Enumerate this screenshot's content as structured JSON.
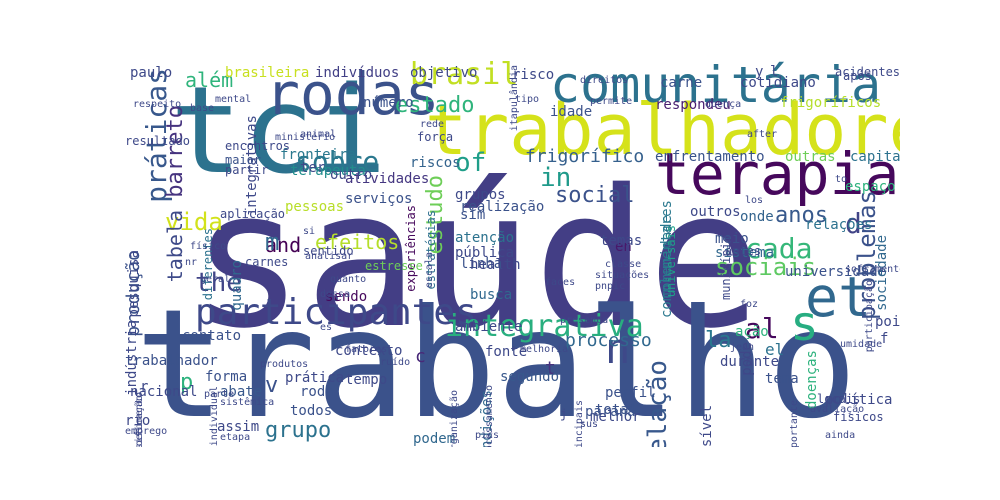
{
  "palette": {
    "dark_purple": "#48186a",
    "indigo": "#433e85",
    "blue": "#38588c",
    "teal_blue": "#2c728e",
    "teal": "#21908d",
    "green_teal": "#27ad81",
    "green": "#5dc963",
    "lime": "#aadc32",
    "yellow": "#e5e419"
  },
  "words": [
    {
      "text": "saúde",
      "color": "#433e85",
      "rotation": "horizontal"
    },
    {
      "text": "trabalho",
      "color": "#3b528b",
      "rotation": "horizontal"
    },
    {
      "text": "tci",
      "color": "#2c728e",
      "rotation": "horizontal"
    },
    {
      "text": "trabalhadores",
      "color": "#d5e21a",
      "rotation": "horizontal"
    },
    {
      "text": "comunitária",
      "color": "#2c728e",
      "rotation": "horizontal"
    },
    {
      "text": "terapia",
      "color": "#46085c",
      "rotation": "horizontal"
    },
    {
      "text": "rodas",
      "color": "#3b528b",
      "rotation": "horizontal"
    },
    {
      "text": "et",
      "color": "#31688e",
      "rotation": "horizontal"
    },
    {
      "text": "participantes",
      "color": "#3e4989",
      "rotation": "horizontal"
    },
    {
      "text": "integrativa",
      "color": "#29af7f",
      "rotation": "horizontal"
    },
    {
      "text": "s",
      "color": "#27ad81",
      "rotation": "horizontal"
    },
    {
      "text": "brasil",
      "color": "#c2df23",
      "rotation": "horizontal"
    },
    {
      "text": "n",
      "color": "#3e4989",
      "rotation": "horizontal"
    },
    {
      "text": "práticas",
      "color": "#38588c",
      "rotation": "vertical"
    },
    {
      "text": "the",
      "color": "#414487",
      "rotation": "horizontal"
    },
    {
      "text": "social",
      "color": "#3b528b",
      "rotation": "horizontal"
    },
    {
      "text": "sociais",
      "color": "#5ec962",
      "rotation": "horizontal"
    },
    {
      "text": "vida",
      "color": "#d2e21b",
      "rotation": "horizontal"
    },
    {
      "text": "sobre",
      "color": "#2a788e",
      "rotation": "horizontal"
    },
    {
      "text": "of",
      "color": "#1f9e89",
      "rotation": "horizontal"
    },
    {
      "text": "in",
      "color": "#1f9a8a",
      "rotation": "horizontal"
    },
    {
      "text": "cada",
      "color": "#35b779",
      "rotation": "horizontal"
    },
    {
      "text": "anos",
      "color": "#38598c",
      "rotation": "horizontal"
    },
    {
      "text": "al",
      "color": "#46085c",
      "rotation": "horizontal"
    },
    {
      "text": "grupo",
      "color": "#2c728e",
      "rotation": "horizontal"
    },
    {
      "text": "relação",
      "color": "#38588c",
      "rotation": "vertical"
    },
    {
      "text": "estado",
      "color": "#2fb47c",
      "rotation": "horizontal"
    },
    {
      "text": "problemas",
      "color": "#3b528b",
      "rotation": "vertical"
    },
    {
      "text": "estudo",
      "color": "#6ece58",
      "rotation": "vertical"
    },
    {
      "text": "barreto",
      "color": "#46337f",
      "rotation": "vertical"
    },
    {
      "text": "tabela",
      "color": "#3e4a89",
      "rotation": "vertical"
    },
    {
      "text": "produção",
      "color": "#3b528b",
      "rotation": "vertical"
    },
    {
      "text": "and",
      "color": "#440154",
      "rotation": "horizontal"
    },
    {
      "text": "efeitos",
      "color": "#b5de2b",
      "rotation": "horizontal"
    },
    {
      "text": "além",
      "color": "#2fb47c",
      "rotation": "horizontal"
    },
    {
      "text": "frigorífico",
      "color": "#35608d",
      "rotation": "horizontal"
    },
    {
      "text": "processo",
      "color": "#31688e",
      "rotation": "horizontal"
    },
    {
      "text": "la",
      "color": "#2a788e",
      "rotation": "horizontal"
    },
    {
      "text": "d",
      "color": "#414487",
      "rotation": "horizontal"
    },
    {
      "text": "m",
      "color": "#31688e",
      "rotation": "horizontal"
    },
    {
      "text": "v",
      "color": "#3b528b",
      "rotation": "horizontal"
    },
    {
      "text": "p",
      "color": "#2db27d",
      "rotation": "horizontal"
    },
    {
      "text": "c",
      "color": "#482878",
      "rotation": "horizontal"
    },
    {
      "text": "t",
      "color": "#46327e",
      "rotation": "horizontal"
    },
    {
      "text": "en",
      "color": "#48186a",
      "rotation": "horizontal"
    },
    {
      "text": "el",
      "color": "#2c728e",
      "rotation": "horizontal"
    },
    {
      "text": "pode",
      "color": "#3f4788",
      "rotation": "vertical"
    },
    {
      "text": "comunidade",
      "color": "#2a778e",
      "rotation": "vertical"
    },
    {
      "text": "complementares",
      "color": "#2a788e",
      "rotation": "vertical"
    },
    {
      "text": "estratégias",
      "color": "#2e6f8e",
      "rotation": "vertical"
    },
    {
      "text": "experiências",
      "color": "#46085c",
      "rotation": "vertical"
    },
    {
      "text": "fronteira",
      "color": "#2a788e",
      "rotation": "horizontal"
    },
    {
      "text": "terapeuta",
      "color": "#228d8d",
      "rotation": "horizontal"
    },
    {
      "text": "pessoas",
      "color": "#b8de29",
      "rotation": "horizontal"
    },
    {
      "text": "atividades",
      "color": "#453781",
      "rotation": "horizontal"
    },
    {
      "text": "outro",
      "color": "#3e4989",
      "rotation": "horizontal"
    },
    {
      "text": "riscos",
      "color": "#33638d",
      "rotation": "horizontal"
    },
    {
      "text": "serviços",
      "color": "#3b528b",
      "rotation": "horizontal"
    },
    {
      "text": "respondeu",
      "color": "#481f70",
      "rotation": "horizontal"
    },
    {
      "text": "enfrentamento",
      "color": "#3a538b",
      "rotation": "horizontal"
    },
    {
      "text": "idade",
      "color": "#3b528b",
      "rotation": "horizontal"
    },
    {
      "text": "objetivo",
      "color": "#3e4989",
      "rotation": "horizontal"
    },
    {
      "text": "indivíduos",
      "color": "#424086",
      "rotation": "horizontal"
    },
    {
      "text": "brasileira",
      "color": "#c8e020",
      "rotation": "horizontal"
    },
    {
      "text": "paulo",
      "color": "#3e4989",
      "rotation": "horizontal"
    },
    {
      "text": "carne",
      "color": "#3b528b",
      "rotation": "horizontal"
    },
    {
      "text": "risco",
      "color": "#3e4989",
      "rotation": "horizontal"
    },
    {
      "text": "número",
      "color": "#3b528b",
      "rotation": "horizontal"
    },
    {
      "text": "frigoríficos",
      "color": "#b5de2b",
      "rotation": "horizontal"
    },
    {
      "text": "cotidiano",
      "color": "#3e4989",
      "rotation": "horizontal"
    },
    {
      "text": "acidentes",
      "color": "#3e4989",
      "rotation": "horizontal"
    },
    {
      "text": "outras",
      "color": "#6ece58",
      "rotation": "horizontal"
    },
    {
      "text": "capital",
      "color": "#2c728e",
      "rotation": "horizontal"
    },
    {
      "text": "espaço",
      "color": "#2db27d",
      "rotation": "horizontal"
    },
    {
      "text": "relações",
      "color": "#2c728e",
      "rotation": "horizontal"
    },
    {
      "text": "onde",
      "color": "#33638d",
      "rotation": "horizontal"
    },
    {
      "text": "outros",
      "color": "#3e4989",
      "rotation": "horizontal"
    },
    {
      "text": "meio",
      "color": "#3b528b",
      "rotation": "horizontal"
    },
    {
      "text": "sistema",
      "color": "#31688e",
      "rotation": "horizontal"
    },
    {
      "text": "universidade",
      "color": "#3b528b",
      "rotation": "horizontal"
    },
    {
      "text": "sociedade",
      "color": "#31688e",
      "rotation": "vertical"
    },
    {
      "text": "universais",
      "color": "#1fa088",
      "rotation": "vertical"
    },
    {
      "text": "temas",
      "color": "#3e4989",
      "rotation": "horizontal"
    },
    {
      "text": "linha",
      "color": "#3b528b",
      "rotation": "horizontal"
    },
    {
      "text": "sim",
      "color": "#3b528b",
      "rotation": "horizontal"
    },
    {
      "text": "atenção",
      "color": "#2c728e",
      "rotation": "horizontal"
    },
    {
      "text": "pública",
      "color": "#3e4989",
      "rotation": "horizontal"
    },
    {
      "text": "health",
      "color": "#3e4989",
      "rotation": "horizontal"
    },
    {
      "text": "busca",
      "color": "#31688e",
      "rotation": "horizontal"
    },
    {
      "text": "realização",
      "color": "#3b528b",
      "rotation": "horizontal"
    },
    {
      "text": "grupos",
      "color": "#3e4989",
      "rotation": "horizontal"
    },
    {
      "text": "ter",
      "color": "#3e4989",
      "rotation": "horizontal"
    },
    {
      "text": "pesquisa",
      "color": "#3e4989",
      "rotation": "vertical"
    },
    {
      "text": "integrativas",
      "color": "#3e4989",
      "rotation": "vertical"
    },
    {
      "text": "maior",
      "color": "#3b528b",
      "rotation": "horizontal"
    },
    {
      "text": "partir",
      "color": "#3e4989",
      "rotation": "horizontal"
    },
    {
      "text": "força",
      "color": "#3e4989",
      "rotation": "horizontal"
    },
    {
      "text": "contato",
      "color": "#3b528b",
      "rotation": "horizontal"
    },
    {
      "text": "quadro",
      "color": "#31688e",
      "rotation": "vertical"
    },
    {
      "text": "sendo",
      "color": "#46085c",
      "rotation": "horizontal"
    },
    {
      "text": "contexto",
      "color": "#3e4989",
      "rotation": "horizontal"
    },
    {
      "text": "trabalhador",
      "color": "#3b528b",
      "rotation": "horizontal"
    },
    {
      "text": "forma",
      "color": "#3b528b",
      "rotation": "horizontal"
    },
    {
      "text": "abate",
      "color": "#38588c",
      "rotation": "horizontal"
    },
    {
      "text": "prática",
      "color": "#3e4989",
      "rotation": "horizontal"
    },
    {
      "text": "roda",
      "color": "#3b528b",
      "rotation": "horizontal"
    },
    {
      "text": "tempo",
      "color": "#3e4989",
      "rotation": "horizontal"
    },
    {
      "text": "nacional",
      "color": "#3e4989",
      "rotation": "horizontal"
    },
    {
      "text": "todos",
      "color": "#3b528b",
      "rotation": "horizontal"
    },
    {
      "text": "assim",
      "color": "#3e4989",
      "rotation": "horizontal"
    },
    {
      "text": "indústria",
      "color": "#3e4989",
      "rotation": "vertical"
    },
    {
      "text": "segundo",
      "color": "#38588c",
      "rotation": "horizontal"
    },
    {
      "text": "fonte",
      "color": "#3e4989",
      "rotation": "horizontal"
    },
    {
      "text": "perfil",
      "color": "#3b528b",
      "rotation": "horizontal"
    },
    {
      "text": "total",
      "color": "#3b528b",
      "rotation": "horizontal"
    },
    {
      "text": "melhor",
      "color": "#3e4989",
      "rotation": "horizontal"
    },
    {
      "text": "podem",
      "color": "#31688e",
      "rotation": "horizontal"
    },
    {
      "text": "condições",
      "color": "#31688e",
      "rotation": "vertical"
    },
    {
      "text": "ambiente",
      "color": "#3e4989",
      "rotation": "horizontal"
    },
    {
      "text": "durante",
      "color": "#3e4989",
      "rotation": "horizontal"
    },
    {
      "text": "tema",
      "color": "#3b528b",
      "rotation": "horizontal"
    },
    {
      "text": "paraná",
      "color": "#3b528b",
      "rotation": "horizontal"
    },
    {
      "text": "possível",
      "color": "#3e4989",
      "rotation": "vertical"
    },
    {
      "text": "doenças",
      "color": "#2db27d",
      "rotation": "vertical"
    },
    {
      "text": "município",
      "color": "#3e4989",
      "rotation": "vertical"
    },
    {
      "text": "antes",
      "color": "#3e4989",
      "rotation": "horizontal"
    },
    {
      "text": "pois",
      "color": "#3e4989",
      "rotation": "horizontal"
    },
    {
      "text": "ação",
      "color": "#2db27d",
      "rotation": "horizontal"
    },
    {
      "text": "política",
      "color": "#3e4989",
      "rotation": "horizontal"
    },
    {
      "text": "físicos",
      "color": "#3e4989",
      "rotation": "horizontal"
    },
    {
      "text": "locais",
      "color": "#3e4989",
      "rotation": "horizontal"
    },
    {
      "text": "resultado",
      "color": "#3e4989",
      "rotation": "horizontal"
    },
    {
      "text": "diferentes",
      "color": "#2c728e",
      "rotation": "vertical"
    },
    {
      "text": "carnes",
      "color": "#3e4989",
      "rotation": "horizontal"
    },
    {
      "text": "aplicação",
      "color": "#3e4989",
      "rotation": "horizontal"
    },
    {
      "text": "estresse",
      "color": "#6ece58",
      "rotation": "horizontal"
    },
    {
      "text": "encontros",
      "color": "#3e4989",
      "rotation": "horizontal"
    },
    {
      "text": "mental",
      "color": "#3e4989",
      "rotation": "horizontal"
    },
    {
      "text": "respeito",
      "color": "#3e4989",
      "rotation": "horizontal"
    },
    {
      "text": "ministério",
      "color": "#3e4989",
      "rotation": "horizontal"
    },
    {
      "text": "animal",
      "color": "#3e4989",
      "rotation": "horizontal"
    },
    {
      "text": "base",
      "color": "#3e4989",
      "rotation": "horizontal"
    },
    {
      "text": "nr",
      "color": "#3e4989",
      "rotation": "horizontal"
    },
    {
      "text": "físico",
      "color": "#3e4989",
      "rotation": "horizontal"
    },
    {
      "text": "si",
      "color": "#3e4989",
      "rotation": "horizontal"
    },
    {
      "text": "sentido",
      "color": "#3e4989",
      "rotation": "horizontal"
    },
    {
      "text": "quanto",
      "color": "#3e4989",
      "rotation": "horizontal"
    },
    {
      "text": "geral",
      "color": "#3e4989",
      "rotation": "horizontal"
    },
    {
      "text": "dessa",
      "color": "#3e4989",
      "rotation": "horizontal"
    },
    {
      "text": "analisar",
      "color": "#3e4989",
      "rotation": "horizontal"
    },
    {
      "text": "es",
      "color": "#3e4989",
      "rotation": "horizontal"
    },
    {
      "text": "fatores",
      "color": "#3e4989",
      "rotation": "horizontal"
    },
    {
      "text": "ruído",
      "color": "#3e4989",
      "rotation": "horizontal"
    },
    {
      "text": "produtos",
      "color": "#3e4989",
      "rotation": "horizontal"
    },
    {
      "text": "parte",
      "color": "#3e4989",
      "rotation": "horizontal"
    },
    {
      "text": "sistêmica",
      "color": "#3e4989",
      "rotation": "horizontal"
    },
    {
      "text": "emprego",
      "color": "#3e4989",
      "rotation": "horizontal"
    },
    {
      "text": "rio",
      "color": "#3e4989",
      "rotation": "horizontal"
    },
    {
      "text": "etapa",
      "color": "#3e4989",
      "rotation": "horizontal"
    },
    {
      "text": "sus",
      "color": "#3e4989",
      "rotation": "horizontal"
    },
    {
      "text": "pics",
      "color": "#3e4989",
      "rotation": "horizontal"
    },
    {
      "text": "ainda",
      "color": "#3e4989",
      "rotation": "horizontal"
    },
    {
      "text": "j",
      "color": "#3e4989",
      "rotation": "horizontal"
    },
    {
      "text": "faces",
      "color": "#3e4989",
      "rotation": "horizontal"
    },
    {
      "text": "pnpic",
      "color": "#3e4989",
      "rotation": "horizontal"
    },
    {
      "text": "situações",
      "color": "#3e4989",
      "rotation": "horizontal"
    },
    {
      "text": "classe",
      "color": "#3e4989",
      "rotation": "horizontal"
    },
    {
      "text": "escala",
      "color": "#3e4989",
      "rotation": "vertical"
    },
    {
      "text": "rede",
      "color": "#3e4989",
      "rotation": "horizontal"
    },
    {
      "text": "tipo",
      "color": "#3e4989",
      "rotation": "horizontal"
    },
    {
      "text": "permite",
      "color": "#3e4989",
      "rotation": "horizontal"
    },
    {
      "text": "direitos",
      "color": "#3e4989",
      "rotation": "horizontal"
    },
    {
      "text": "itapulândia",
      "color": "#3e4989",
      "rotation": "vertical"
    },
    {
      "text": "doença",
      "color": "#3e4989",
      "rotation": "horizontal"
    },
    {
      "text": "after",
      "color": "#3e4989",
      "rotation": "horizontal"
    },
    {
      "text": "após",
      "color": "#3e4989",
      "rotation": "horizontal"
    },
    {
      "text": "y",
      "color": "#3e4989",
      "rotation": "horizontal"
    },
    {
      "text": "l",
      "color": "#3e4989",
      "rotation": "horizontal"
    },
    {
      "text": "to",
      "color": "#3e4989",
      "rotation": "horizontal"
    },
    {
      "text": "los",
      "color": "#3e4989",
      "rotation": "horizontal"
    },
    {
      "text": "foz",
      "color": "#3e4989",
      "rotation": "horizontal"
    },
    {
      "text": "melhoria",
      "color": "#3e4989",
      "rotation": "horizontal"
    },
    {
      "text": "presença",
      "color": "#3e4989",
      "rotation": "horizontal"
    },
    {
      "text": "jean",
      "color": "#3e4989",
      "rotation": "horizontal"
    },
    {
      "text": "umidade",
      "color": "#3e4989",
      "rotation": "horizontal"
    },
    {
      "text": "sofrimento",
      "color": "#3e4989",
      "rotation": "horizontal"
    },
    {
      "text": "participação",
      "color": "#3e4989",
      "rotation": "vertical"
    },
    {
      "text": "avaliação",
      "color": "#3e4989",
      "rotation": "horizontal"
    },
    {
      "text": "importante",
      "color": "#3e4989",
      "rotation": "vertical"
    },
    {
      "text": "principais",
      "color": "#3e4989",
      "rotation": "vertical"
    },
    {
      "text": "processamento",
      "color": "#3e4989",
      "rotation": "vertical"
    },
    {
      "text": "organização",
      "color": "#3e4989",
      "rotation": "vertical"
    },
    {
      "text": "adoecimento",
      "color": "#3e4989",
      "rotation": "vertical"
    },
    {
      "text": "individual",
      "color": "#3e4989",
      "rotation": "vertical"
    },
    {
      "text": "classificação",
      "color": "#3e4989",
      "rotation": "vertical"
    },
    {
      "text": "r",
      "color": "#3e4989",
      "rotation": "horizontal"
    },
    {
      "text": "f",
      "color": "#3e4989",
      "rotation": "horizontal"
    }
  ]
}
